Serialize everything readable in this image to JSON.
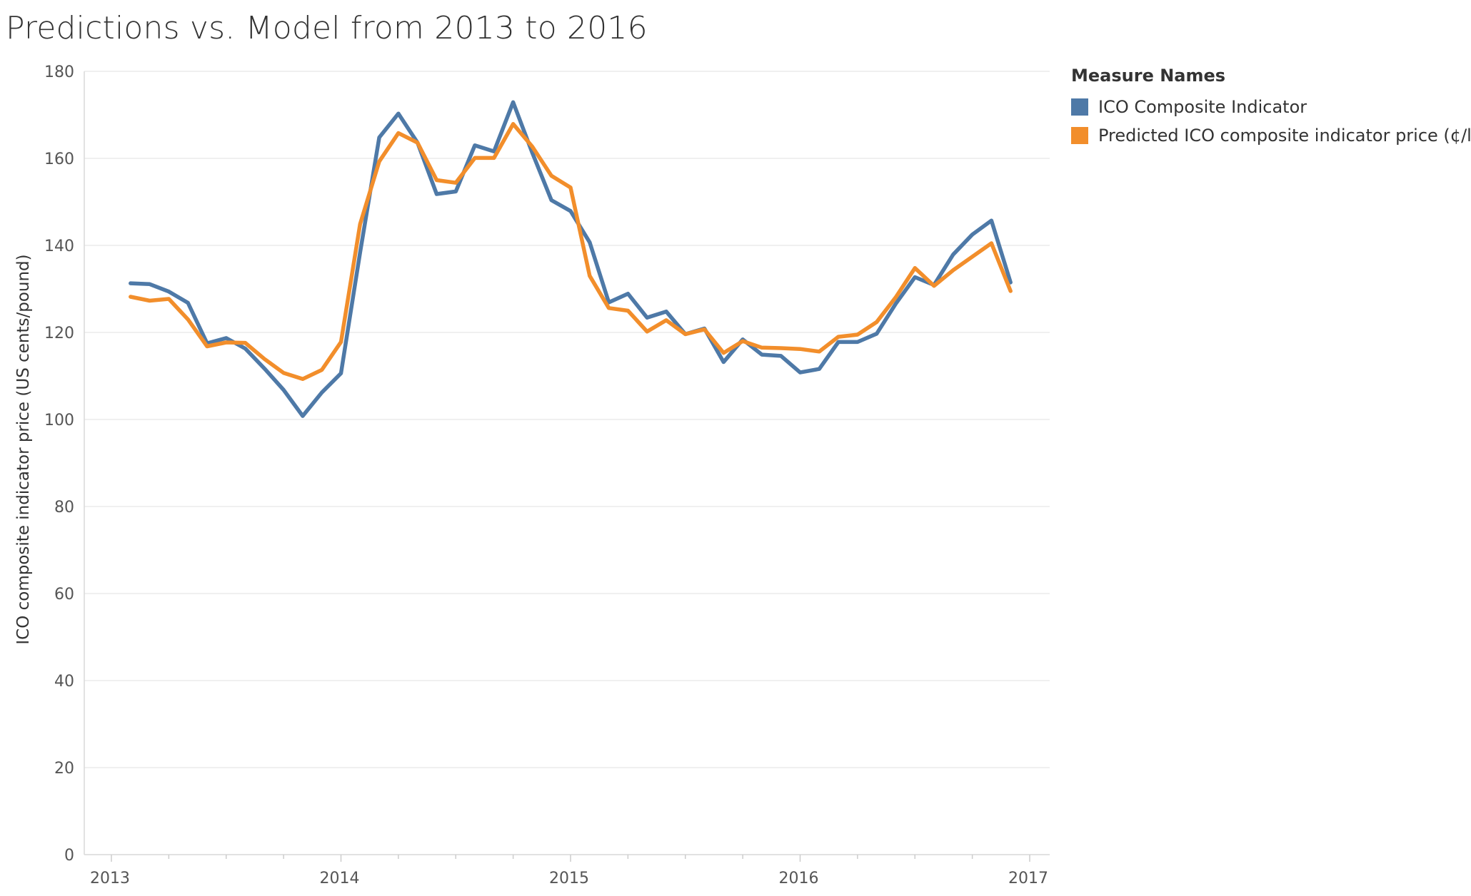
{
  "title": "Predictions vs. Model from 2013 to 2016",
  "legend": {
    "title": "Measure Names",
    "items": [
      {
        "label": "ICO Composite Indicator",
        "color": "#4e79a7"
      },
      {
        "label": "Predicted ICO composite indicator price (¢/lb.)",
        "color": "#f28e2b"
      }
    ]
  },
  "chart_data": {
    "type": "line",
    "title": "Predictions vs. Model from 2013 to 2016",
    "xlabel": "",
    "ylabel": "ICO composite indicator price (US cents/pound)",
    "xlim": [
      "2013-01-01",
      "2017-01-01"
    ],
    "ylim": [
      0,
      180
    ],
    "x_ticks": [
      "2013",
      "2014",
      "2015",
      "2016",
      "2017"
    ],
    "y_ticks": [
      0,
      20,
      40,
      60,
      80,
      100,
      120,
      140,
      160,
      180
    ],
    "grid": true,
    "legend_position": "top-right",
    "x": [
      "2013-02",
      "2013-03",
      "2013-04",
      "2013-05",
      "2013-06",
      "2013-07",
      "2013-08",
      "2013-09",
      "2013-10",
      "2013-11",
      "2013-12",
      "2014-01",
      "2014-02",
      "2014-03",
      "2014-04",
      "2014-05",
      "2014-06",
      "2014-07",
      "2014-08",
      "2014-09",
      "2014-10",
      "2014-11",
      "2014-12",
      "2015-01",
      "2015-02",
      "2015-03",
      "2015-04",
      "2015-05",
      "2015-06",
      "2015-07",
      "2015-08",
      "2015-09",
      "2015-10",
      "2015-11",
      "2015-12",
      "2016-01",
      "2016-02",
      "2016-03",
      "2016-04",
      "2016-05",
      "2016-06",
      "2016-07",
      "2016-08",
      "2016-09",
      "2016-10",
      "2016-11",
      "2016-12"
    ],
    "series": [
      {
        "name": "ICO Composite Indicator",
        "color": "#4e79a7",
        "values": [
          131.3,
          131.1,
          129.4,
          126.8,
          117.5,
          118.7,
          116.3,
          111.7,
          106.8,
          100.8,
          106.2,
          110.6,
          138.4,
          164.8,
          170.3,
          163.6,
          151.8,
          152.4,
          163.0,
          161.6,
          172.9,
          161.3,
          150.4,
          147.9,
          140.7,
          126.9,
          128.9,
          123.4,
          124.8,
          119.6,
          120.9,
          113.2,
          118.4,
          114.9,
          114.6,
          110.8,
          111.6,
          117.8,
          117.8,
          119.7,
          126.6,
          132.7,
          130.9,
          137.9,
          142.5,
          145.7,
          131.5
        ]
      },
      {
        "name": "Predicted ICO composite indicator price (¢/lb.)",
        "color": "#f28e2b",
        "values": [
          128.2,
          127.3,
          127.7,
          123.0,
          116.8,
          117.7,
          117.6,
          113.9,
          110.7,
          109.3,
          111.4,
          117.8,
          144.9,
          159.3,
          165.8,
          163.6,
          155.0,
          154.4,
          160.1,
          160.1,
          167.9,
          162.7,
          156.0,
          153.3,
          133.0,
          125.6,
          125.0,
          120.2,
          122.8,
          119.6,
          120.7,
          115.3,
          118.0,
          116.5,
          116.4,
          116.2,
          115.6,
          119.0,
          119.5,
          122.4,
          128.1,
          134.8,
          130.7,
          134.3,
          137.4,
          140.5,
          129.5
        ]
      }
    ]
  }
}
